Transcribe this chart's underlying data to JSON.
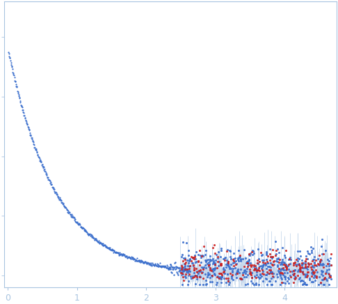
{
  "background_color": "#ffffff",
  "plot_bg_color": "#ffffff",
  "axis_color": "#a8c4e0",
  "tick_color": "#a8c4e0",
  "tick_label_color": "#a8c4e0",
  "dot_color_blue": "#3a6ecc",
  "dot_color_red": "#cc2222",
  "error_color": "#bed3ea",
  "xlim": [
    -0.05,
    4.75
  ],
  "ylim": [
    -0.05,
    1.15
  ],
  "xticks": [
    0,
    1,
    2,
    3,
    4
  ],
  "figsize": [
    4.86,
    4.37
  ],
  "dpi": 100
}
